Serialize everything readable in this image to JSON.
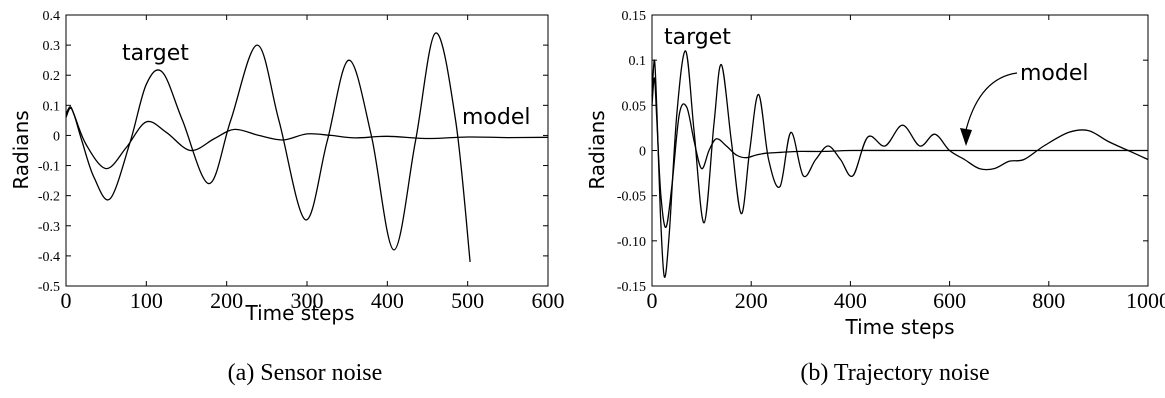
{
  "chart_data": [
    {
      "type": "line",
      "caption": "(a) Sensor noise",
      "xlabel": "Time steps",
      "ylabel": "Radians",
      "xlim": [
        0,
        600
      ],
      "ylim": [
        -0.5,
        0.4
      ],
      "xticks": [
        "0",
        "100",
        "200",
        "300",
        "400",
        "500",
        "600"
      ],
      "yticks": [
        "0.4",
        "0.3",
        "0.2",
        "0.1",
        "0",
        "-0.1",
        "-0.2",
        "-0.3",
        "-0.4",
        "-0.5"
      ],
      "annotations": [
        "target",
        "model"
      ],
      "series": [
        {
          "name": "target",
          "x": [
            0,
            5,
            10,
            20,
            35,
            55,
            80,
            100,
            120,
            145,
            178,
            205,
            238,
            265,
            298,
            325,
            352,
            380,
            408,
            435,
            460,
            485,
            503
          ],
          "y": [
            0.06,
            0.09,
            0.07,
            -0.02,
            -0.14,
            -0.21,
            -0.02,
            0.17,
            0.21,
            0.05,
            -0.16,
            0.05,
            0.3,
            0.05,
            -0.28,
            -0.02,
            0.25,
            0.0,
            -0.38,
            -0.02,
            0.34,
            0.05,
            -0.42
          ]
        },
        {
          "name": "model",
          "x": [
            0,
            5,
            10,
            25,
            50,
            75,
            100,
            125,
            155,
            185,
            210,
            240,
            270,
            300,
            330,
            360,
            400,
            450,
            500,
            550,
            600
          ],
          "y": [
            0.07,
            0.095,
            0.07,
            -0.03,
            -0.11,
            -0.04,
            0.045,
            0.01,
            -0.05,
            -0.01,
            0.02,
            0.0,
            -0.015,
            0.005,
            0.0,
            -0.008,
            -0.003,
            -0.01,
            -0.005,
            -0.007,
            -0.006
          ]
        }
      ]
    },
    {
      "type": "line",
      "caption": "(b) Trajectory noise",
      "xlabel": "Time steps",
      "ylabel": "Radians",
      "xlim": [
        0,
        1000
      ],
      "ylim": [
        -0.15,
        0.15
      ],
      "xticks": [
        "0",
        "200",
        "400",
        "600",
        "800",
        "1000"
      ],
      "yticks": [
        "0.15",
        "0.1",
        "0.05",
        "0",
        "-0.05",
        "-0.10",
        "-0.15"
      ],
      "annotations": [
        "target",
        "model"
      ],
      "series": [
        {
          "name": "target",
          "x": [
            0,
            5,
            10,
            17,
            25,
            35,
            50,
            68,
            85,
            105,
            125,
            140,
            160,
            180,
            197,
            215,
            235,
            258,
            280,
            305,
            330,
            355,
            380,
            405,
            435,
            470,
            505,
            540,
            570,
            600,
            630,
            660,
            690,
            720,
            750,
            790,
            840,
            880,
            920,
            960,
            1000
          ],
          "y": [
            0.06,
            0.1,
            0.04,
            -0.07,
            -0.14,
            -0.09,
            0.04,
            0.11,
            0.02,
            -0.08,
            0.03,
            0.095,
            0.01,
            -0.07,
            0.0,
            0.062,
            -0.01,
            -0.04,
            0.02,
            -0.028,
            -0.01,
            0.005,
            -0.01,
            -0.028,
            0.015,
            0.005,
            0.028,
            0.005,
            0.018,
            0.0,
            -0.01,
            -0.02,
            -0.02,
            -0.012,
            -0.01,
            0.005,
            0.02,
            0.022,
            0.01,
            0.0,
            -0.01
          ]
        },
        {
          "name": "model",
          "x": [
            0,
            5,
            10,
            18,
            28,
            40,
            55,
            70,
            85,
            100,
            115,
            130,
            150,
            170,
            190,
            210,
            230,
            260,
            300,
            350,
            400,
            500,
            600,
            700,
            800,
            900,
            1000
          ],
          "y": [
            0.05,
            0.08,
            0.03,
            -0.05,
            -0.085,
            -0.04,
            0.04,
            0.048,
            0.01,
            -0.02,
            0.0,
            0.013,
            0.005,
            -0.005,
            -0.008,
            -0.005,
            -0.003,
            -0.002,
            -0.001,
            -0.001,
            0.0,
            0.0,
            0.0,
            0.0,
            0.0,
            0.0,
            0.0
          ]
        }
      ]
    }
  ]
}
